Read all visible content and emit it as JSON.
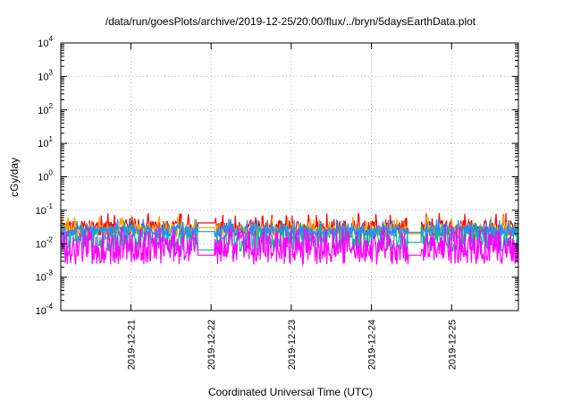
{
  "chart_data": {
    "type": "line",
    "title": "/data/run/goesPlots/archive/2019-12-25/20:00/flux/../bryn/5daysEarthData.plot",
    "xlabel": "Coordinated Universal Time (UTC)",
    "ylabel": "cGy/day",
    "yscale": "log",
    "ylim": [
      0.0001,
      10000
    ],
    "xlim": [
      "2019-12-20T03:00",
      "2019-12-25T20:00"
    ],
    "y_ticks": [
      {
        "base": "10",
        "exp": "-4",
        "value": 0.0001
      },
      {
        "base": "10",
        "exp": "-3",
        "value": 0.001
      },
      {
        "base": "10",
        "exp": "-2",
        "value": 0.01
      },
      {
        "base": "10",
        "exp": "-1",
        "value": 0.1
      },
      {
        "base": "10",
        "exp": "0",
        "value": 1
      },
      {
        "base": "10",
        "exp": "1",
        "value": 10
      },
      {
        "base": "10",
        "exp": "2",
        "value": 100
      },
      {
        "base": "10",
        "exp": "3",
        "value": 1000
      },
      {
        "base": "10",
        "exp": "4",
        "value": 10000
      }
    ],
    "x_ticks": [
      "2019-12-21",
      "2019-12-22",
      "2019-12-23",
      "2019-12-24",
      "2019-12-25"
    ],
    "grid": true,
    "legend": "none",
    "gaps": [
      {
        "start": "2019-12-21T20:00",
        "end": "2019-12-22T01:00"
      },
      {
        "start": "2019-12-24T11:00",
        "end": "2019-12-24T15:00"
      }
    ],
    "series": [
      {
        "color": "#ff0000",
        "base": 0.03,
        "spread": 0.45,
        "spike": 0.075,
        "gap_values": [
          0.042,
          0.02
        ]
      },
      {
        "color": "#ffa500",
        "base": 0.025,
        "spread": 0.4,
        "spike": 0.06,
        "gap_values": [
          0.03,
          0.02
        ]
      },
      {
        "color": "#00c090",
        "base": 0.013,
        "spread": 0.7,
        "spike": 0.04,
        "gap_values": [
          0.0065,
          0.011
        ]
      },
      {
        "color": "#1e90ff",
        "base": 0.024,
        "spread": 0.35,
        "spike": 0.05,
        "gap_values": [
          0.023,
          0.022
        ]
      },
      {
        "color": "#ff00ff",
        "base": 0.0075,
        "spread": 1.0,
        "spike": 0.03,
        "gap_values": [
          0.0045,
          0.0045
        ]
      }
    ]
  }
}
